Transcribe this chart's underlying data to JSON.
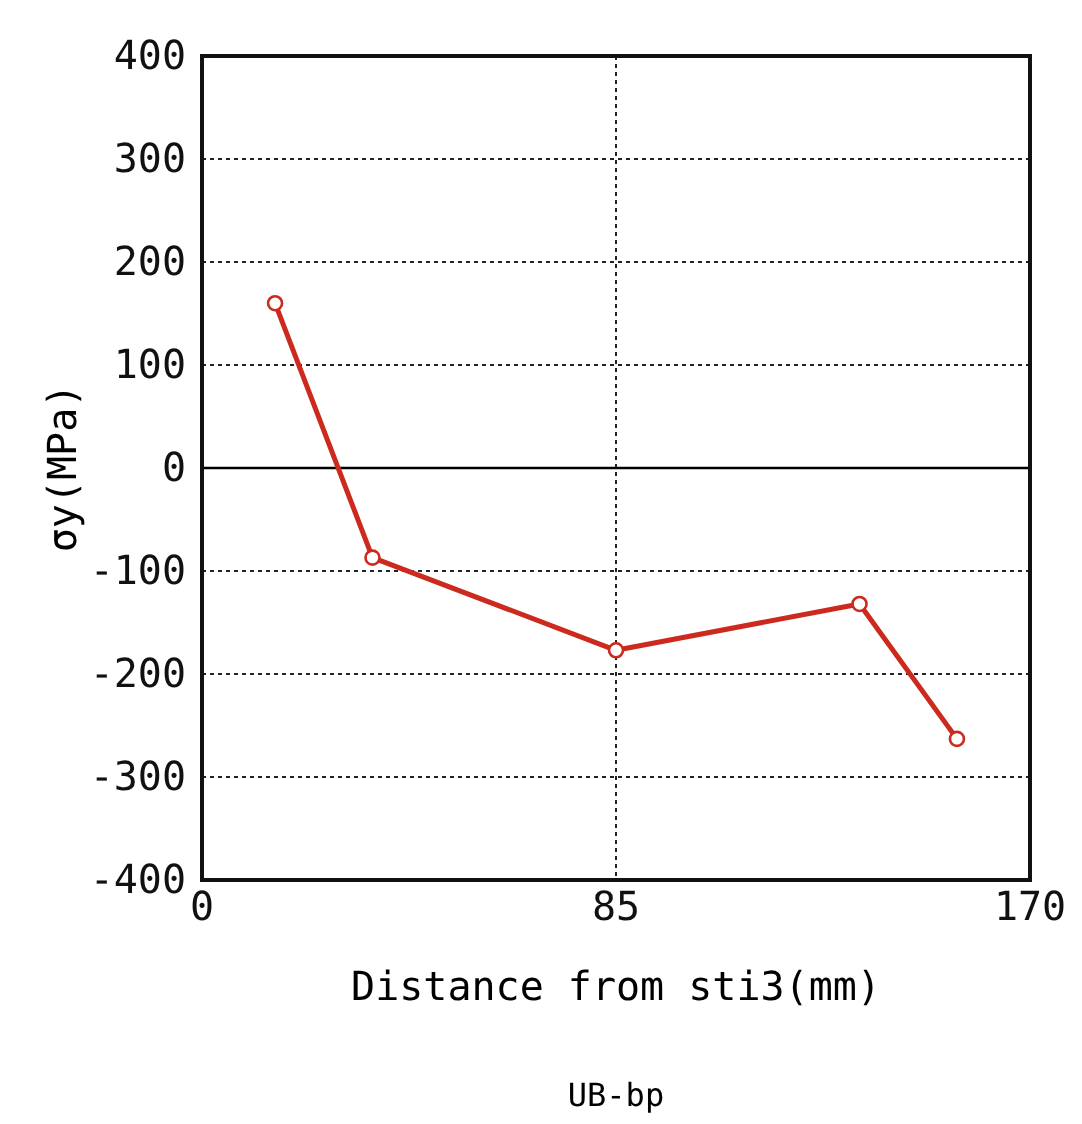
{
  "chart_data": {
    "type": "line",
    "xlabel": "Distance from sti3(mm)",
    "ylabel": "σy(MPa)",
    "annotations": [
      "UB-bp"
    ],
    "x": [
      15,
      35,
      85,
      135,
      155
    ],
    "series": [
      {
        "color": "#cc2a1e",
        "values": [
          160,
          -87,
          -177,
          -132,
          -263
        ]
      }
    ],
    "xlim": [
      0,
      170
    ],
    "xticks": [
      0,
      85,
      170
    ],
    "ylim": [
      -400,
      400
    ],
    "yticks": [
      -400,
      -300,
      -200,
      -100,
      0,
      100,
      200,
      300,
      400
    ],
    "grid": true,
    "marker": "circle",
    "line_style": "solid",
    "ref_lines": [
      {
        "axis": "y",
        "value": 0,
        "color": "#000000"
      }
    ]
  }
}
